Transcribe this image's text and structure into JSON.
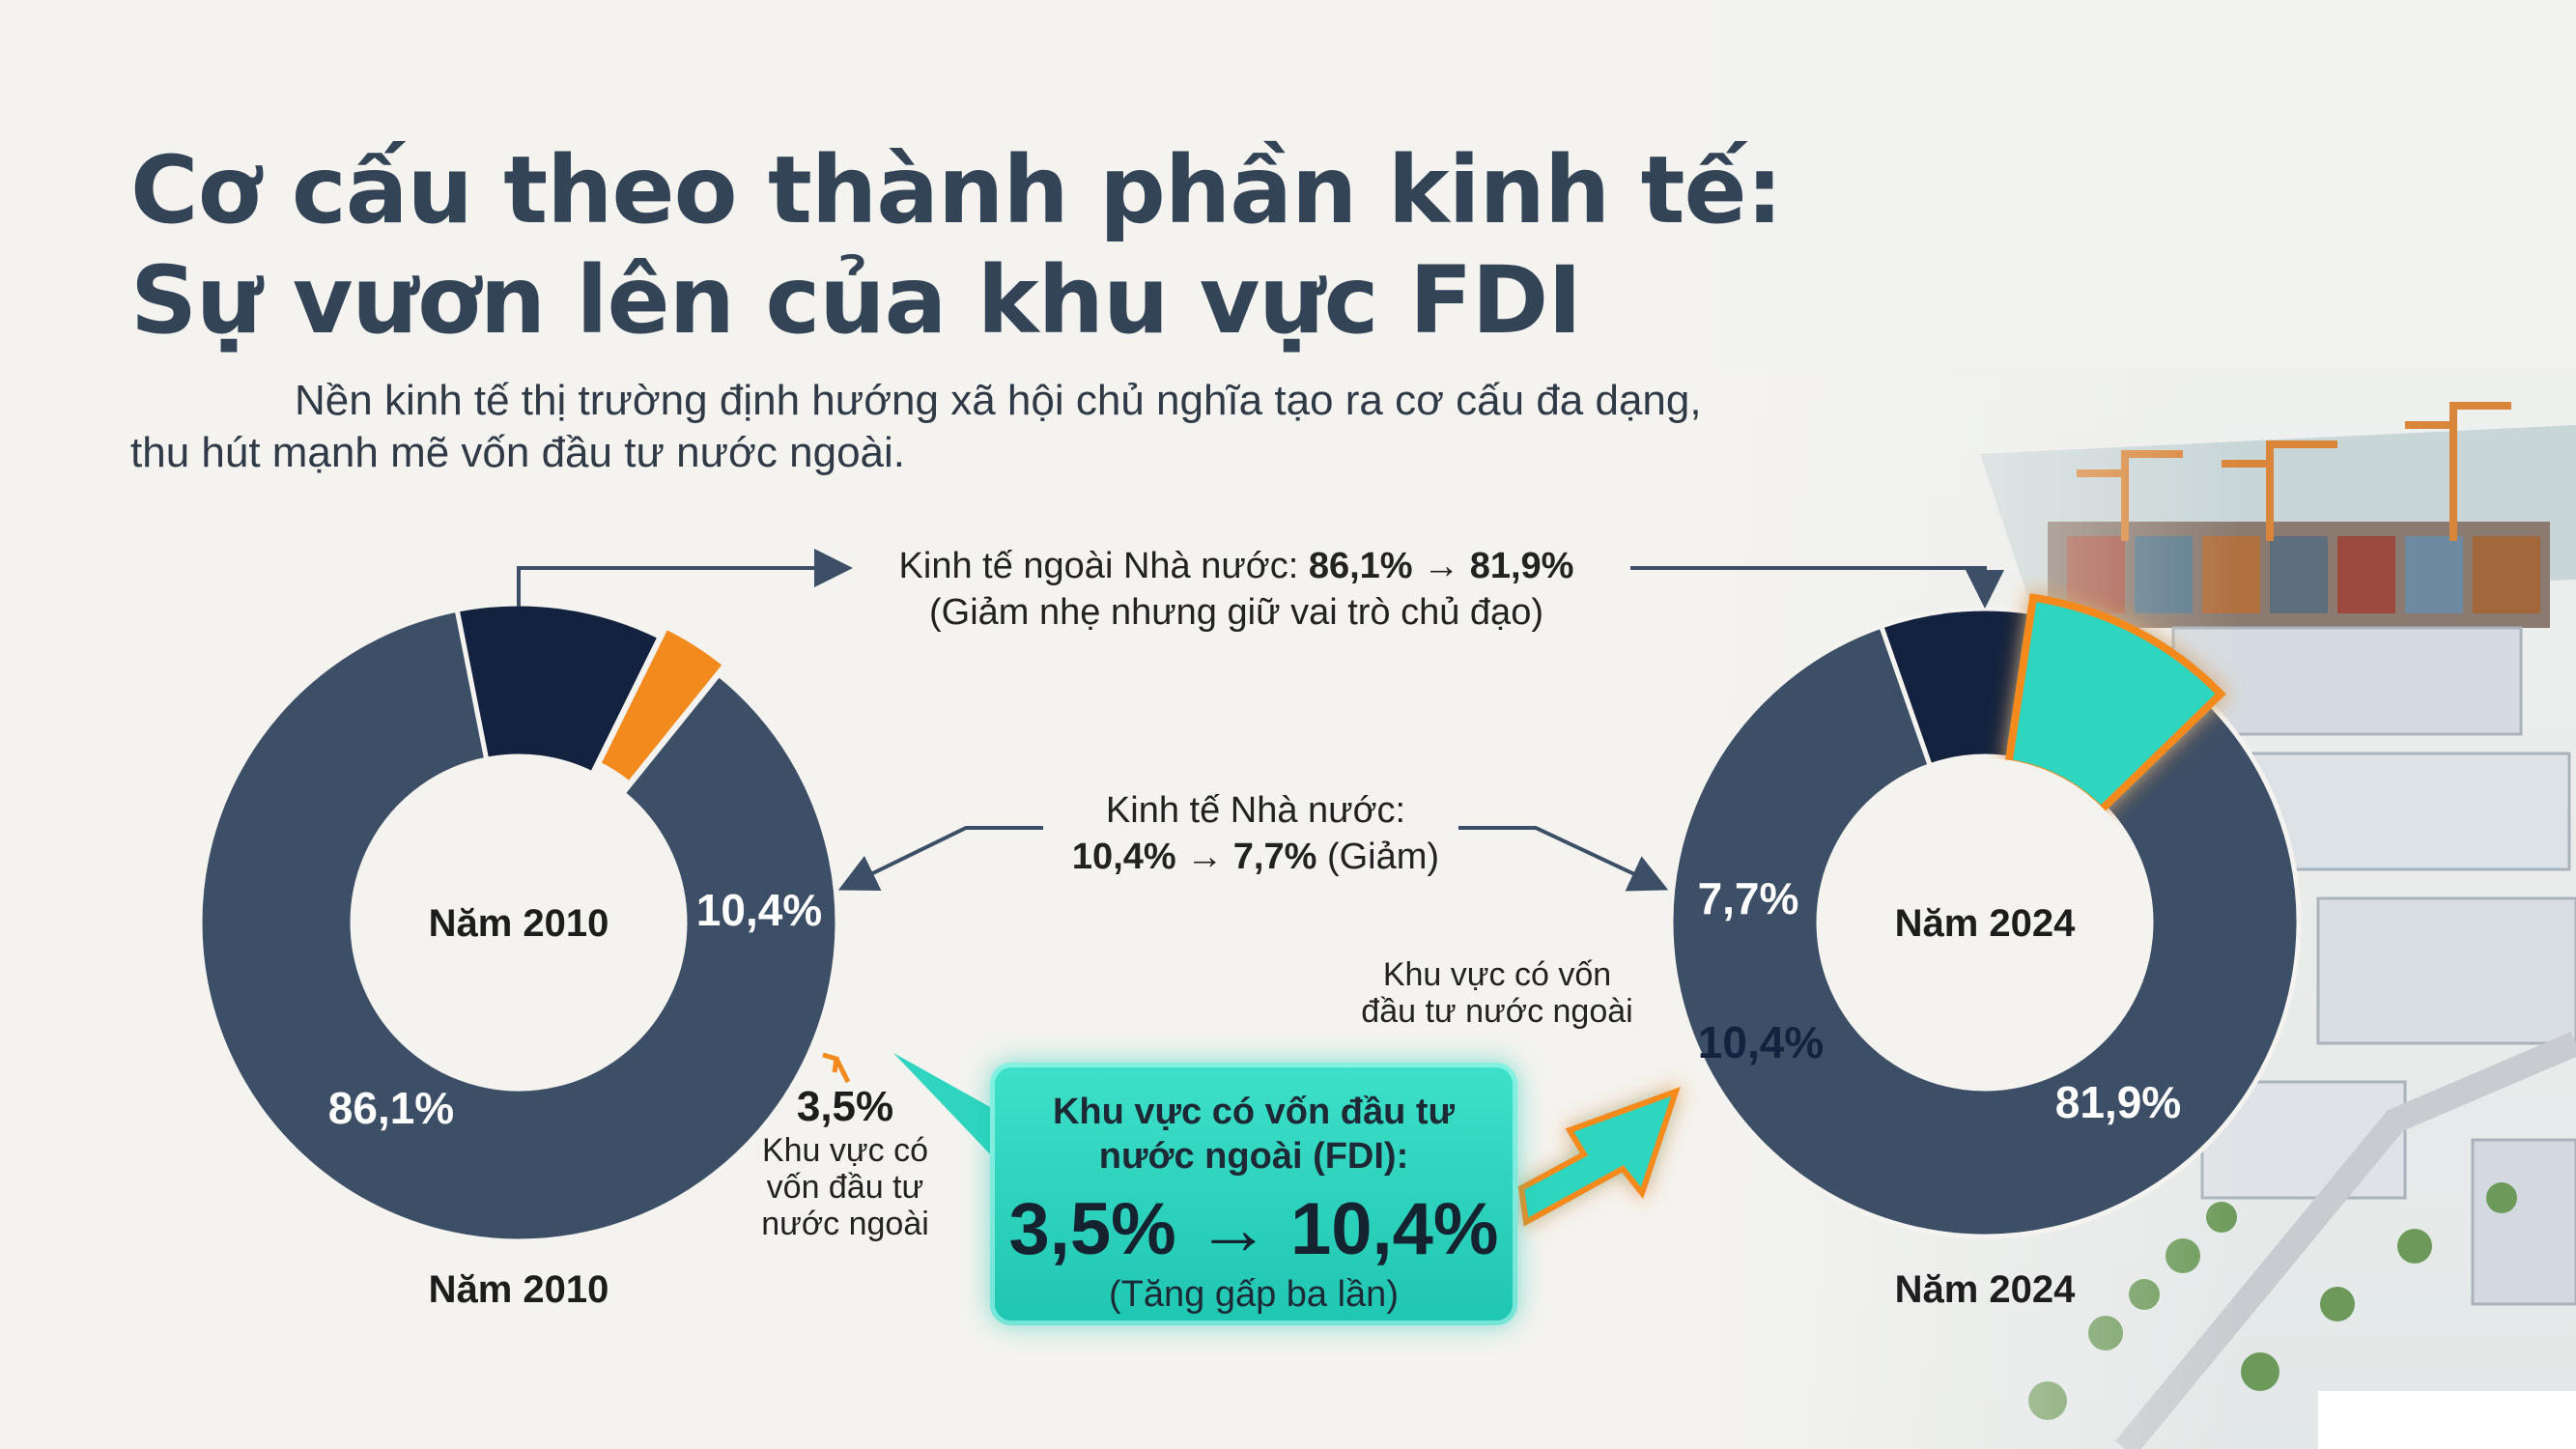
{
  "title_line1": "Cơ cấu theo thành phần kinh tế:",
  "title_line2": "Sự vươn lên của khu vực FDI",
  "subtitle": "Nền kinh tế thị trường định hướng xã hội chủ nghĩa tạo ra cơ cấu đa dạng, thu hút mạnh mẽ vốn đầu tư nước ngoài.",
  "annotations": {
    "non_state_line1_prefix": "Kinh tế ngoài Nhà nước: ",
    "non_state_line1_values": "86,1% → 81,9%",
    "non_state_line2": "(Giảm nhẹ nhưng giữ vai trò chủ đạo)",
    "state_line1": "Kinh tế Nhà nước:",
    "state_line2_values": "10,4% → 7,7%",
    "state_line2_suffix": " (Giảm)",
    "fdi_small_left_value": "3,5%",
    "fdi_small_left_label_1": "Khu vực có",
    "fdi_small_left_label_2": "vốn đầu tư",
    "fdi_small_left_label_3": "nước ngoài",
    "fdi_right_label_1": "Khu vực có vốn",
    "fdi_right_label_2": "đầu tư nước ngoài"
  },
  "callout": {
    "title_line1": "Khu vực có vốn đầu tư",
    "title_line2": "nước ngoài (FDI):",
    "value": "3,5% → 10,4%",
    "note": "(Tăng gấp ba lần)"
  },
  "colors": {
    "non_state": "#3d4f66",
    "state": "#13233f",
    "fdi_2010": "#f28a1e",
    "fdi_2024": "#2fd5bf",
    "fdi_2024_glow": "#f58a1f",
    "arrow": "#3d4f66",
    "text_dark": "#334457"
  },
  "chart_data": [
    {
      "type": "pie",
      "center_label": "Năm 2010",
      "bottom_label": "Năm 2010",
      "categories": [
        "Kinh tế ngoài Nhà nước",
        "Kinh tế Nhà nước",
        "Khu vực có vốn đầu tư nước ngoài"
      ],
      "values": [
        86.1,
        10.4,
        3.5
      ],
      "value_labels": [
        "86,1%",
        "10,4%",
        "3,5%"
      ]
    },
    {
      "type": "pie",
      "center_label": "Năm 2024",
      "bottom_label": "Năm 2024",
      "categories": [
        "Kinh tế ngoài Nhà nước",
        "Kinh tế Nhà nước",
        "Khu vực có vốn đầu tư nước ngoài"
      ],
      "values": [
        81.9,
        7.7,
        10.4
      ],
      "value_labels": [
        "81,9%",
        "7,7%",
        "10,4%"
      ]
    }
  ]
}
